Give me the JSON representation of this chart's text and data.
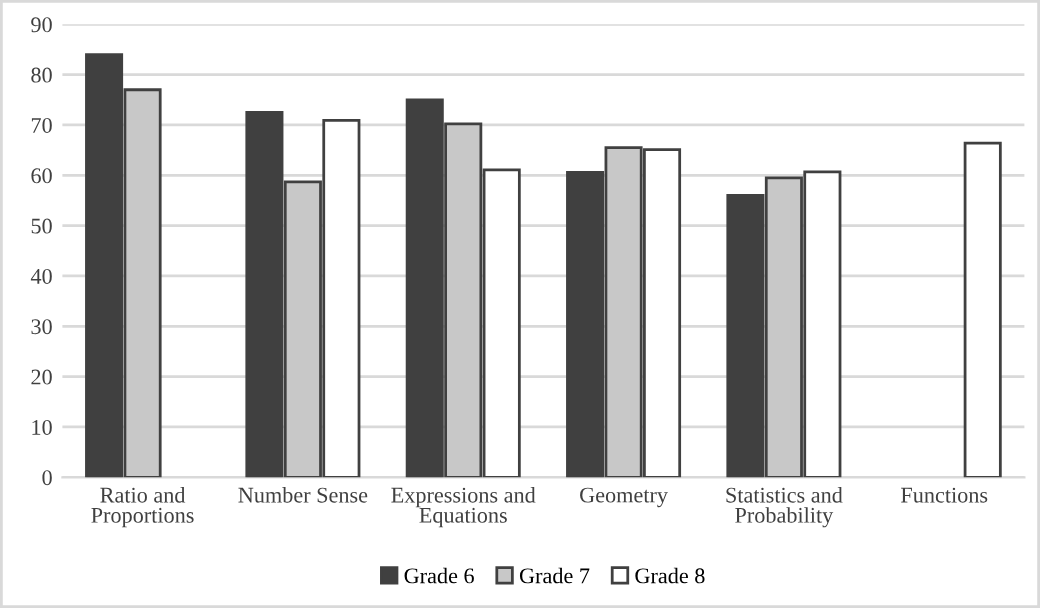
{
  "chart_data": {
    "type": "bar",
    "categories": [
      "Ratio and\nProportions",
      "Number Sense",
      "Expressions and\nEquations",
      "Geometry",
      "Statistics and\nProbability",
      "Functions"
    ],
    "series": [
      {
        "name": "Grade 6",
        "color": "#404040",
        "values": [
          84,
          72.5,
          75,
          60.6,
          56,
          null
        ]
      },
      {
        "name": "Grade 7",
        "color": "#c8c8c8",
        "values": [
          77,
          58.7,
          70.2,
          65.5,
          59.5,
          null
        ]
      },
      {
        "name": "Grade 8",
        "color": "#ffffff",
        "values": [
          null,
          70.9,
          61.1,
          65.1,
          60.7,
          66.4
        ]
      }
    ],
    "ylim": [
      0,
      90
    ],
    "yticks": [
      0,
      10,
      20,
      30,
      40,
      50,
      60,
      70,
      80,
      90
    ],
    "grid": "y",
    "legend": "bottom"
  }
}
